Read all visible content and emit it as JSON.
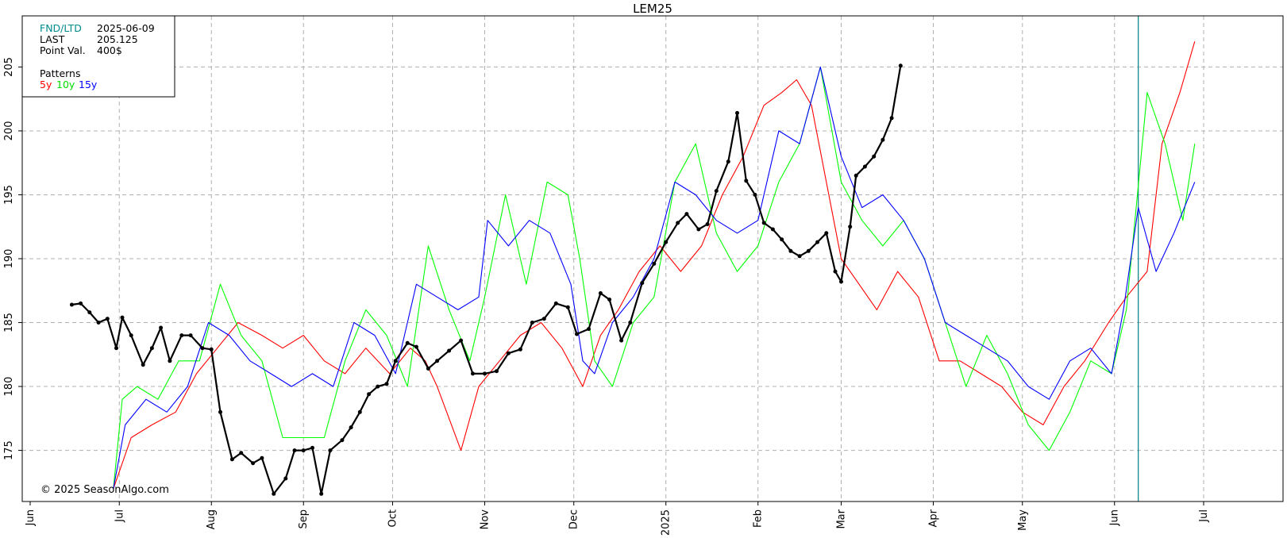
{
  "chart_data": {
    "type": "line",
    "title": "LEM25",
    "info_box": {
      "rows": [
        {
          "label": "FND/LTD",
          "value": "2025-06-09"
        },
        {
          "label": "LAST",
          "value": "205.125"
        },
        {
          "label": "Point Val.",
          "value": "400$"
        }
      ],
      "patterns_label": "Patterns",
      "pattern_names": [
        "5y",
        "10y",
        "15y"
      ]
    },
    "copyright": "© 2025 SeasonAlgo.com",
    "x_tick_labels": [
      "Jun",
      "Jul",
      "Aug",
      "Sep",
      "Oct",
      "Nov",
      "Dec",
      "2025",
      "Feb",
      "Mar",
      "Apr",
      "May",
      "Jun",
      "Jul"
    ],
    "y_tick_labels": [
      "175",
      "180",
      "185",
      "190",
      "195",
      "200",
      "205"
    ],
    "ylim": [
      171,
      209
    ],
    "grid": true,
    "marker_line_date": "2025-06-09",
    "colors": {
      "axis": "#000000",
      "grid": "#b0b0b0",
      "marker": "#008080",
      "fnd_label": "#008b8b",
      "y5": "#ff0000",
      "y10": "#00ff00",
      "y15": "#0000ff",
      "price": "#000000"
    },
    "series": [
      {
        "name": "5y",
        "color": "#ff0000",
        "x": [
          "2024-06-29",
          "2024-07-05",
          "2024-07-12",
          "2024-07-20",
          "2024-07-27",
          "2024-08-03",
          "2024-08-10",
          "2024-08-18",
          "2024-08-25",
          "2024-09-01",
          "2024-09-08",
          "2024-09-15",
          "2024-09-22",
          "2024-09-30",
          "2024-10-07",
          "2024-10-12",
          "2024-10-16",
          "2024-10-24",
          "2024-10-30",
          "2024-11-06",
          "2024-11-13",
          "2024-11-20",
          "2024-11-27",
          "2024-12-04",
          "2024-12-10",
          "2024-12-16",
          "2024-12-23",
          "2024-12-30",
          "2025-01-06",
          "2025-01-13",
          "2025-01-20",
          "2025-01-27",
          "2025-02-03",
          "2025-02-09",
          "2025-02-14",
          "2025-02-19",
          "2025-02-24",
          "2025-03-01",
          "2025-03-07",
          "2025-03-13",
          "2025-03-20",
          "2025-03-27",
          "2025-04-03",
          "2025-04-10",
          "2025-04-17",
          "2025-04-24",
          "2025-05-01",
          "2025-05-08",
          "2025-05-15",
          "2025-05-22",
          "2025-05-30",
          "2025-06-05",
          "2025-06-12",
          "2025-06-17",
          "2025-06-23",
          "2025-06-28"
        ],
        "y": [
          172,
          176,
          177,
          178,
          181,
          183,
          185,
          184,
          183,
          184,
          182,
          181,
          183,
          181,
          183,
          182,
          180,
          175,
          180,
          182,
          184,
          185,
          183,
          180,
          184,
          186,
          189,
          191,
          189,
          191,
          195,
          198,
          202,
          203,
          204,
          202,
          196,
          190,
          188,
          186,
          189,
          187,
          182,
          182,
          181,
          180,
          178,
          177,
          180,
          182,
          185,
          187,
          189,
          199,
          203,
          207
        ]
      },
      {
        "name": "10y",
        "color": "#00ff00",
        "x": [
          "2024-06-29",
          "2024-07-02",
          "2024-07-07",
          "2024-07-14",
          "2024-07-21",
          "2024-07-28",
          "2024-08-04",
          "2024-08-11",
          "2024-08-18",
          "2024-08-25",
          "2024-09-01",
          "2024-09-08",
          "2024-09-15",
          "2024-09-22",
          "2024-09-29",
          "2024-10-06",
          "2024-10-13",
          "2024-10-20",
          "2024-10-27",
          "2024-11-01",
          "2024-11-08",
          "2024-11-15",
          "2024-11-22",
          "2024-11-29",
          "2024-12-03",
          "2024-12-08",
          "2024-12-14",
          "2024-12-21",
          "2024-12-28",
          "2025-01-04",
          "2025-01-11",
          "2025-01-18",
          "2025-01-25",
          "2025-02-01",
          "2025-02-08",
          "2025-02-15",
          "2025-02-22",
          "2025-03-01",
          "2025-03-08",
          "2025-03-15",
          "2025-03-22",
          "2025-03-29",
          "2025-04-05",
          "2025-04-12",
          "2025-04-19",
          "2025-04-26",
          "2025-05-03",
          "2025-05-10",
          "2025-05-17",
          "2025-05-24",
          "2025-05-31",
          "2025-06-05",
          "2025-06-12",
          "2025-06-18",
          "2025-06-24",
          "2025-06-28"
        ],
        "y": [
          172,
          179,
          180,
          179,
          182,
          182,
          188,
          184,
          182,
          176,
          176,
          176,
          182,
          186,
          184,
          180,
          191,
          186,
          182,
          187,
          195,
          188,
          196,
          195,
          190,
          182,
          180,
          185,
          187,
          196,
          199,
          192,
          189,
          191,
          196,
          199,
          205,
          196,
          193,
          191,
          193,
          190,
          185,
          180,
          184,
          181,
          177,
          175,
          178,
          182,
          181,
          186,
          203,
          199,
          193,
          199
        ]
      },
      {
        "name": "15y",
        "color": "#0000ff",
        "x": [
          "2024-06-29",
          "2024-07-03",
          "2024-07-10",
          "2024-07-17",
          "2024-07-24",
          "2024-07-31",
          "2024-08-07",
          "2024-08-14",
          "2024-08-21",
          "2024-08-28",
          "2024-09-04",
          "2024-09-11",
          "2024-09-18",
          "2024-09-25",
          "2024-10-02",
          "2024-10-09",
          "2024-10-16",
          "2024-10-23",
          "2024-10-30",
          "2024-11-02",
          "2024-11-09",
          "2024-11-16",
          "2024-11-23",
          "2024-11-30",
          "2024-12-04",
          "2024-12-08",
          "2024-12-14",
          "2024-12-21",
          "2024-12-28",
          "2025-01-04",
          "2025-01-11",
          "2025-01-18",
          "2025-01-25",
          "2025-02-01",
          "2025-02-08",
          "2025-02-15",
          "2025-02-22",
          "2025-03-01",
          "2025-03-08",
          "2025-03-15",
          "2025-03-22",
          "2025-03-29",
          "2025-04-05",
          "2025-04-12",
          "2025-04-19",
          "2025-04-26",
          "2025-05-03",
          "2025-05-10",
          "2025-05-17",
          "2025-05-24",
          "2025-05-31",
          "2025-06-04",
          "2025-06-09",
          "2025-06-15",
          "2025-06-21",
          "2025-06-28"
        ],
        "y": [
          172,
          177,
          179,
          178,
          180,
          185,
          184,
          182,
          181,
          180,
          181,
          180,
          185,
          184,
          181,
          188,
          187,
          186,
          187,
          193,
          191,
          193,
          192,
          188,
          182,
          181,
          185,
          187,
          190,
          196,
          195,
          193,
          192,
          193,
          200,
          199,
          205,
          198,
          194,
          195,
          193,
          190,
          185,
          184,
          183,
          182,
          180,
          179,
          182,
          183,
          181,
          186,
          194,
          189,
          192,
          196
        ]
      },
      {
        "name": "",
        "color": "#000000",
        "role": "price",
        "x": [
          "2024-06-15",
          "2024-06-18",
          "2024-06-21",
          "2024-06-24",
          "2024-06-27",
          "2024-06-30",
          "2024-07-02",
          "2024-07-05",
          "2024-07-09",
          "2024-07-12",
          "2024-07-15",
          "2024-07-18",
          "2024-07-22",
          "2024-07-25",
          "2024-07-29",
          "2024-08-01",
          "2024-08-04",
          "2024-08-08",
          "2024-08-11",
          "2024-08-15",
          "2024-08-18",
          "2024-08-22",
          "2024-08-26",
          "2024-08-29",
          "2024-09-01",
          "2024-09-04",
          "2024-09-07",
          "2024-09-10",
          "2024-09-14",
          "2024-09-17",
          "2024-09-20",
          "2024-09-23",
          "2024-09-26",
          "2024-09-29",
          "2024-10-02",
          "2024-10-06",
          "2024-10-09",
          "2024-10-13",
          "2024-10-16",
          "2024-10-20",
          "2024-10-24",
          "2024-10-28",
          "2024-11-01",
          "2024-11-05",
          "2024-11-09",
          "2024-11-13",
          "2024-11-17",
          "2024-11-21",
          "2024-11-25",
          "2024-11-29",
          "2024-12-02",
          "2024-12-06",
          "2024-12-10",
          "2024-12-13",
          "2024-12-17",
          "2024-12-20",
          "2024-12-24",
          "2024-12-28",
          "2025-01-01",
          "2025-01-05",
          "2025-01-08",
          "2025-01-12",
          "2025-01-15",
          "2025-01-18",
          "2025-01-22",
          "2025-01-25",
          "2025-01-28",
          "2025-01-31",
          "2025-02-03",
          "2025-02-06",
          "2025-02-09",
          "2025-02-12",
          "2025-02-15",
          "2025-02-18",
          "2025-02-21",
          "2025-02-24",
          "2025-02-27",
          "2025-03-01",
          "2025-03-04",
          "2025-03-06",
          "2025-03-09",
          "2025-03-12",
          "2025-03-15",
          "2025-03-18",
          "2025-03-21"
        ],
        "y": [
          186.4,
          186.5,
          185.8,
          185.0,
          185.3,
          183.0,
          185.4,
          184.0,
          181.7,
          183.0,
          184.6,
          182.0,
          184.0,
          184.0,
          183.0,
          182.9,
          178.0,
          174.3,
          174.8,
          174.0,
          174.4,
          171.6,
          172.8,
          175.0,
          175.0,
          175.2,
          171.6,
          175.0,
          175.8,
          176.8,
          178.0,
          179.4,
          180.0,
          180.2,
          182.0,
          183.4,
          183.1,
          181.4,
          182.0,
          182.8,
          183.6,
          181.0,
          181.0,
          181.2,
          182.6,
          182.9,
          185.0,
          185.3,
          186.5,
          186.2,
          184.1,
          184.5,
          187.3,
          186.8,
          183.6,
          185.0,
          188.1,
          189.6,
          191.3,
          192.8,
          193.5,
          192.3,
          192.7,
          195.3,
          197.6,
          201.4,
          196.1,
          195.0,
          192.8,
          192.3,
          191.5,
          190.6,
          190.2,
          190.6,
          191.3,
          192.0,
          189.0,
          188.2,
          192.5,
          196.5,
          197.2,
          198.0,
          199.3,
          201.0,
          205.1
        ]
      }
    ]
  }
}
